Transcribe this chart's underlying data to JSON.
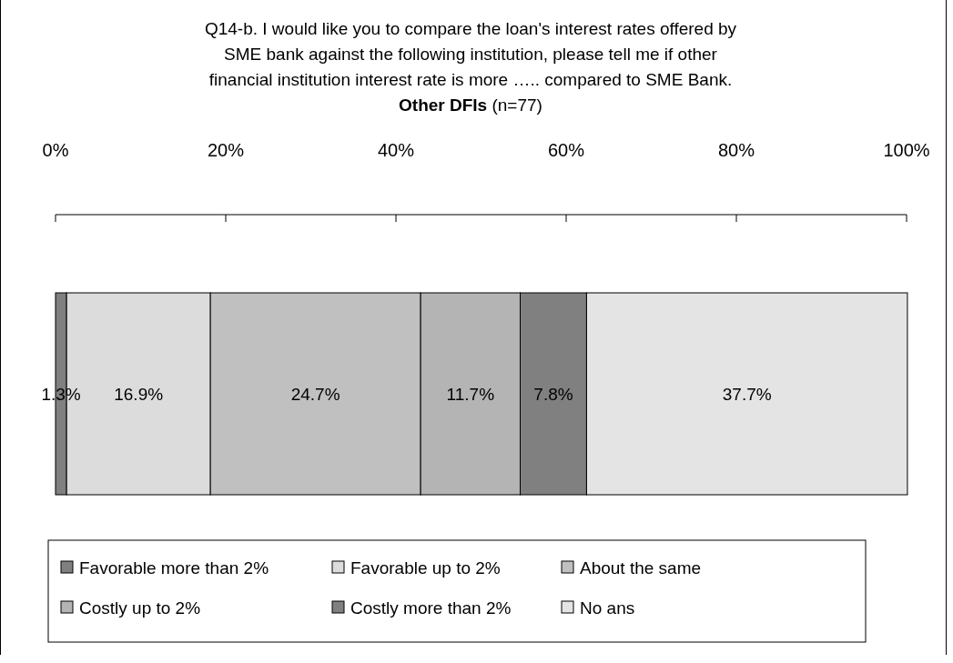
{
  "chart_data": {
    "type": "bar",
    "orientation": "horizontal",
    "stacked": true,
    "title": "Q14-b. I would like you to compare the loan's interest rates offered by\nSME bank against the following institution, please tell me if other\nfinancial institution interest rate is more ….. compared to SME Bank.",
    "subtitle": "Other DFIs (n=77)",
    "categories": [
      null
    ],
    "series": [
      {
        "name": "Favorable more than 2%",
        "color": "#808080",
        "values": [
          1.3
        ],
        "value_labels": [
          "1.3%"
        ]
      },
      {
        "name": "Favorable up to 2%",
        "color": "#dcdcdc",
        "values": [
          16.9
        ],
        "value_labels": [
          "16.9%"
        ]
      },
      {
        "name": "About the same",
        "color": "#c0c0c0",
        "values": [
          24.7
        ],
        "value_labels": [
          "24.7%"
        ]
      },
      {
        "name": "Costly up to 2%",
        "color": "#b4b4b4",
        "values": [
          11.7
        ],
        "value_labels": [
          "11.7%"
        ]
      },
      {
        "name": "Costly more than 2%",
        "color": "#808080",
        "values": [
          7.8
        ],
        "value_labels": [
          "7.8%"
        ]
      },
      {
        "name": "No ans",
        "color": "#e4e4e4",
        "values": [
          37.7
        ],
        "value_labels": [
          "37.7%"
        ]
      }
    ],
    "xlim": [
      0,
      100
    ],
    "xticks": [
      {
        "value": 0,
        "label": "0%"
      },
      {
        "value": 20,
        "label": "20%"
      },
      {
        "value": 40,
        "label": "40%"
      },
      {
        "value": 60,
        "label": "60%"
      },
      {
        "value": 80,
        "label": "80%"
      },
      {
        "value": 100,
        "label": "100%"
      }
    ],
    "grid": false,
    "legend": "bottom"
  }
}
